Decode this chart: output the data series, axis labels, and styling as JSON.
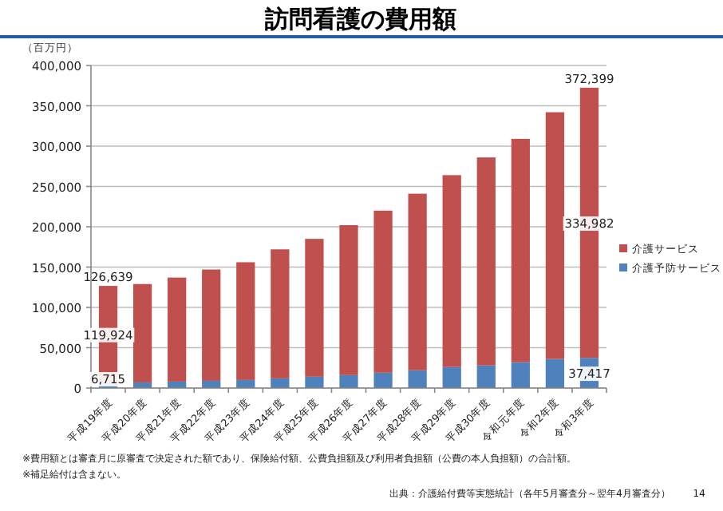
{
  "chart_data": {
    "type": "bar",
    "title": "訪問看護の費用額",
    "ylabel": "（百万円）",
    "categories": [
      "平成19年度",
      "平成20年度",
      "平成21年度",
      "平成22年度",
      "平成23年度",
      "平成24年度",
      "平成25年度",
      "平成26年度",
      "平成27年度",
      "平成28年度",
      "平成29年度",
      "平成30年度",
      "令和元年度",
      "令和2年度",
      "令和3年度"
    ],
    "stacked": true,
    "series": [
      {
        "name": "介護予防サービス",
        "color": "#4f81bd",
        "values": [
          6715,
          7000,
          8000,
          9000,
          10000,
          12000,
          14000,
          16000,
          19000,
          22000,
          26000,
          28000,
          32000,
          36000,
          37417
        ],
        "value_labels": [
          "6,715",
          null,
          null,
          null,
          null,
          null,
          null,
          null,
          null,
          null,
          null,
          null,
          null,
          null,
          "37,417"
        ]
      },
      {
        "name": "介護サービス",
        "color": "#c0504d",
        "values": [
          119924,
          122000,
          129000,
          138000,
          146000,
          160000,
          171000,
          186000,
          201000,
          219000,
          238000,
          258000,
          277000,
          306000,
          334982
        ],
        "value_labels": [
          "119,924",
          null,
          null,
          null,
          null,
          null,
          null,
          null,
          null,
          null,
          null,
          null,
          null,
          null,
          "334,982"
        ]
      }
    ],
    "totals": [
      "126,639",
      null,
      null,
      null,
      null,
      null,
      null,
      null,
      null,
      null,
      null,
      null,
      null,
      null,
      "372,399"
    ],
    "ylim": [
      0,
      400000
    ],
    "yticks": [
      {
        "value": 0,
        "label": "0"
      },
      {
        "value": 50000,
        "label": "50,000"
      },
      {
        "value": 100000,
        "label": "100,000"
      },
      {
        "value": 150000,
        "label": "150,000"
      },
      {
        "value": 200000,
        "label": "200,000"
      },
      {
        "value": 250000,
        "label": "250,000"
      },
      {
        "value": 300000,
        "label": "300,000"
      },
      {
        "value": 350000,
        "label": "350,000"
      },
      {
        "value": 400000,
        "label": "400,000"
      }
    ],
    "grid": "y",
    "legend": "right",
    "annotations": [
      "※費用額とは審査月に原審査で決定された額であり、保険給付額、公費負担額及び利用者負担額（公費の本人負担額）の合計額。",
      "※補足給付は含まない。",
      "出典：介護給付費等実態統計（各年5月審査分～翌年4月審査分）",
      "14"
    ]
  }
}
